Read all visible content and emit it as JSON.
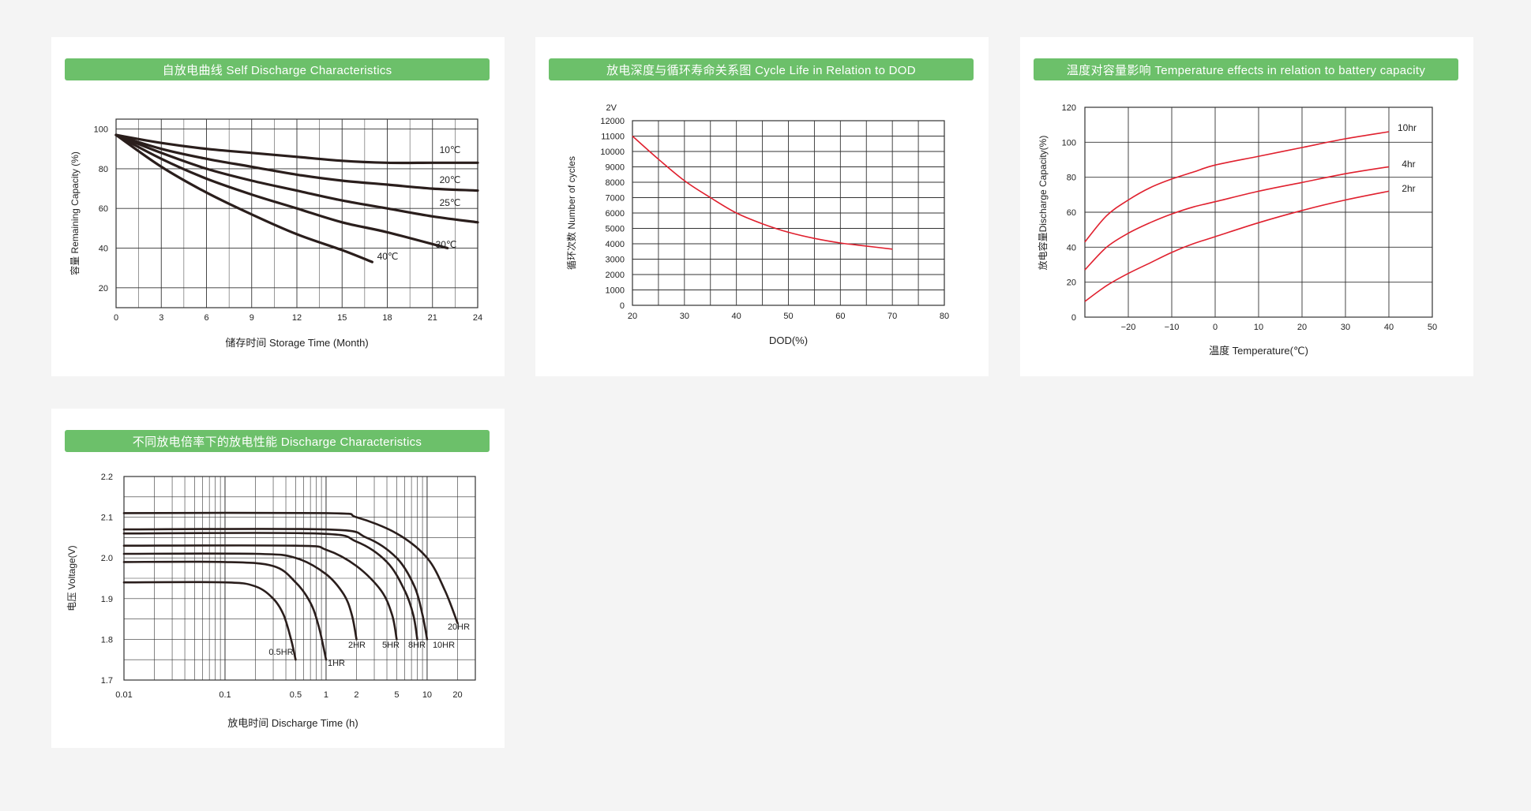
{
  "panels": [
    {
      "title": "自放电曲线 Self Discharge Characteristics"
    },
    {
      "title": "放电深度与循环寿命关系图 Cycle Life in Relation to DOD"
    },
    {
      "title": "温度对容量影响 Temperature effects in relation to battery capacity"
    },
    {
      "title": "不同放电倍率下的放电性能 Discharge Characteristics"
    }
  ],
  "colors": {
    "header": "#6cc06a",
    "curve_dark": "#2a1e1c",
    "curve_red": "#e0202e",
    "grid": "#333333",
    "background": "#f4f4f4"
  },
  "chart_data": [
    {
      "type": "line",
      "title": "自放电曲线 Self Discharge Characteristics",
      "xlabel": "储存时间 Storage Time (Month)",
      "ylabel": "容量 Remaining Capacity (%)",
      "xlim": [
        0,
        24
      ],
      "ylim": [
        10,
        105
      ],
      "x_ticks": [
        "0",
        "3",
        "6",
        "9",
        "12",
        "15",
        "18",
        "21",
        "24"
      ],
      "y_ticks": [
        "20",
        "40",
        "60",
        "80",
        "100"
      ],
      "grid": true,
      "series": [
        {
          "name": "10℃",
          "x": [
            0,
            3,
            6,
            9,
            12,
            15,
            18,
            21,
            24
          ],
          "y": [
            97,
            93,
            90,
            88,
            86,
            84,
            83,
            83,
            83
          ]
        },
        {
          "name": "20℃",
          "x": [
            0,
            3,
            6,
            9,
            12,
            15,
            18,
            21,
            24
          ],
          "y": [
            97,
            90,
            85,
            81,
            77,
            74,
            72,
            70,
            69
          ]
        },
        {
          "name": "25℃",
          "x": [
            0,
            3,
            6,
            9,
            12,
            15,
            18,
            21,
            24
          ],
          "y": [
            97,
            88,
            80,
            74,
            69,
            64,
            60,
            56,
            53
          ]
        },
        {
          "name": "30℃",
          "x": [
            0,
            3,
            6,
            9,
            12,
            15,
            18,
            22
          ],
          "y": [
            97,
            85,
            75,
            67,
            60,
            53,
            48,
            40
          ]
        },
        {
          "name": "40℃",
          "x": [
            0,
            3,
            6,
            9,
            12,
            15,
            17
          ],
          "y": [
            97,
            81,
            68,
            57,
            47,
            39,
            33
          ]
        }
      ]
    },
    {
      "type": "line",
      "title": "放电深度与循环寿命关系图 Cycle Life in Relation to DOD",
      "xlabel": "DOD(%)",
      "ylabel": "循环次数 Number of cycles",
      "unit_label": "2V",
      "xlim": [
        20,
        80
      ],
      "ylim": [
        0,
        12000
      ],
      "x_ticks": [
        "20",
        "30",
        "40",
        "50",
        "60",
        "70",
        "80"
      ],
      "y_ticks": [
        "0",
        "1000",
        "2000",
        "3000",
        "4000",
        "5000",
        "6000",
        "7000",
        "8000",
        "9000",
        "10000",
        "11000",
        "12000"
      ],
      "grid": true,
      "series": [
        {
          "x": [
            20,
            25,
            30,
            35,
            40,
            45,
            50,
            55,
            60,
            65,
            70
          ],
          "y": [
            11000,
            9500,
            8100,
            7000,
            6000,
            5300,
            4750,
            4350,
            4050,
            3850,
            3650
          ]
        }
      ]
    },
    {
      "type": "line",
      "title": "温度对容量影响 Temperature effects in relation to battery capacity",
      "xlabel": "温度 Temperature(℃)",
      "ylabel": "放电容量Discharge Capacity(%)",
      "xlim": [
        -30,
        50
      ],
      "ylim": [
        0,
        120
      ],
      "x_ticks": [
        "-20",
        "-10",
        "0",
        "10",
        "20",
        "30",
        "40",
        "50"
      ],
      "y_ticks": [
        "0",
        "20",
        "40",
        "60",
        "80",
        "100",
        "120"
      ],
      "grid": true,
      "series": [
        {
          "name": "10hr",
          "x": [
            -30,
            -25,
            -20,
            -15,
            -10,
            -5,
            0,
            10,
            20,
            30,
            40
          ],
          "y": [
            43,
            58,
            67,
            74,
            79,
            83,
            87,
            92,
            97,
            102,
            106
          ]
        },
        {
          "name": "4hr",
          "x": [
            -30,
            -25,
            -20,
            -15,
            -10,
            -5,
            0,
            10,
            20,
            30,
            40
          ],
          "y": [
            27,
            40,
            48,
            54,
            59,
            63,
            66,
            72,
            77,
            82,
            86
          ]
        },
        {
          "name": "2hr",
          "x": [
            -30,
            -25,
            -20,
            -15,
            -10,
            -5,
            0,
            10,
            20,
            30,
            40
          ],
          "y": [
            9,
            18,
            25,
            31,
            37,
            42,
            46,
            54,
            61,
            67,
            72
          ]
        }
      ]
    },
    {
      "type": "line",
      "title": "不同放电倍率下的放电性能 Discharge Characteristics",
      "xlabel": "放电时间 Discharge Time (h)",
      "ylabel": "电压 Voltage(V)",
      "x_scale": "log",
      "xlim": [
        0.01,
        30
      ],
      "ylim": [
        1.7,
        2.2
      ],
      "x_ticks": [
        "0.01",
        "0.1",
        "0.5",
        "1",
        "2",
        "5",
        "10",
        "20"
      ],
      "y_ticks": [
        "1.7",
        "1.8",
        "1.9",
        "2.0",
        "2.1",
        "2.2"
      ],
      "grid": true,
      "series": [
        {
          "name": "0.5HR",
          "x": [
            0.01,
            0.1,
            0.2,
            0.3,
            0.38,
            0.45,
            0.5
          ],
          "y": [
            1.94,
            1.94,
            1.93,
            1.9,
            1.86,
            1.8,
            1.75
          ]
        },
        {
          "name": "1HR",
          "x": [
            0.01,
            0.1,
            0.3,
            0.5,
            0.7,
            0.85,
            1.0
          ],
          "y": [
            1.99,
            1.99,
            1.98,
            1.94,
            1.89,
            1.83,
            1.75
          ]
        },
        {
          "name": "2HR",
          "x": [
            0.01,
            0.2,
            0.5,
            1.0,
            1.5,
            1.8,
            2.0
          ],
          "y": [
            2.01,
            2.01,
            2.0,
            1.96,
            1.91,
            1.86,
            1.8
          ]
        },
        {
          "name": "5HR",
          "x": [
            0.01,
            0.5,
            1.0,
            2.0,
            3.5,
            4.5,
            5.0
          ],
          "y": [
            2.03,
            2.03,
            2.02,
            1.98,
            1.92,
            1.86,
            1.8
          ]
        },
        {
          "name": "8HR",
          "x": [
            0.01,
            0.8,
            2.0,
            4.0,
            6.0,
            7.3,
            8.0
          ],
          "y": [
            2.06,
            2.06,
            2.04,
            1.99,
            1.92,
            1.86,
            1.8
          ]
        },
        {
          "name": "10HR",
          "x": [
            0.01,
            1.0,
            2.5,
            5.0,
            7.5,
            9.0,
            10.0
          ],
          "y": [
            2.07,
            2.07,
            2.05,
            2.0,
            1.93,
            1.86,
            1.8
          ]
        },
        {
          "name": "20HR",
          "x": [
            0.01,
            1.0,
            2.0,
            5.0,
            10.0,
            15.0,
            20.0
          ],
          "y": [
            2.11,
            2.11,
            2.1,
            2.06,
            2.0,
            1.92,
            1.84
          ]
        }
      ]
    }
  ]
}
